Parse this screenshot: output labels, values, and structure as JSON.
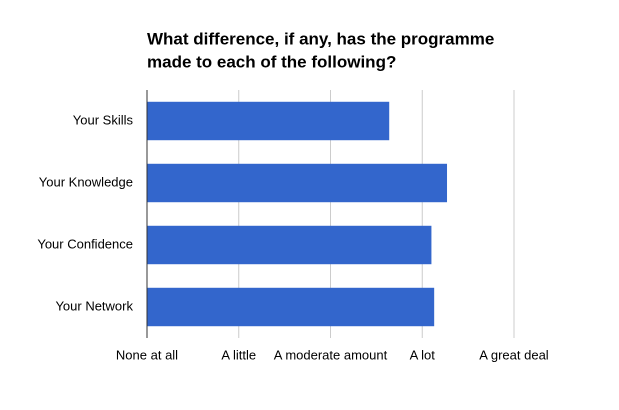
{
  "chart_data": {
    "type": "barh",
    "title": [
      "What difference, if any, has the programme",
      "made to each of the following?"
    ],
    "categories": [
      "Your Skills",
      "Your Knowledge",
      "Your Confidence",
      "Your Network"
    ],
    "values": [
      3.64,
      4.27,
      4.1,
      4.13
    ],
    "color": "#3366cc",
    "xlim": [
      1,
      5
    ],
    "xticks": [
      {
        "value": 1,
        "label": "None at all"
      },
      {
        "value": 2,
        "label": "A little"
      },
      {
        "value": 3,
        "label": "A moderate amount"
      },
      {
        "value": 4,
        "label": "A lot"
      },
      {
        "value": 5,
        "label": "A great deal"
      }
    ],
    "grid": true
  }
}
